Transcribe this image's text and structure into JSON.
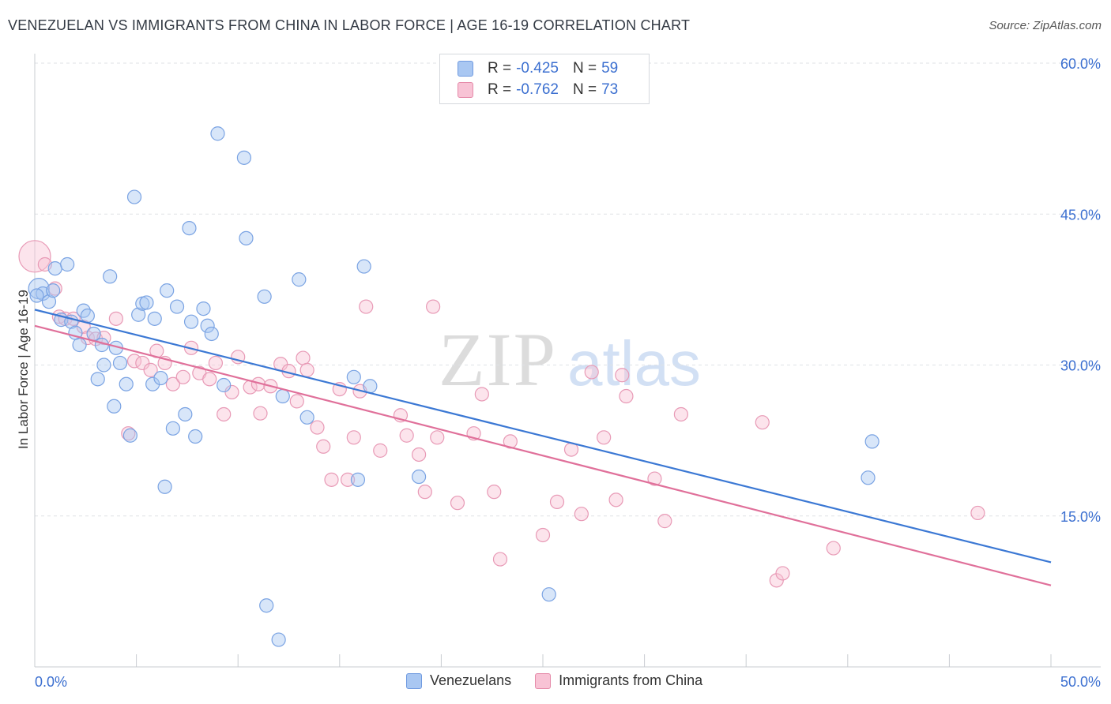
{
  "title": "VENEZUELAN VS IMMIGRANTS FROM CHINA IN LABOR FORCE | AGE 16-19 CORRELATION CHART",
  "source": "Source: ZipAtlas.com",
  "watermark": {
    "zip": "ZIP",
    "atlas": "atlas"
  },
  "legend": {
    "rows": [
      {
        "r_label": "R =",
        "r_value": "-0.425",
        "n_label": "N =",
        "n_value": "59",
        "color": "#a9c7f2",
        "border": "#6f9ae0"
      },
      {
        "r_label": "R =",
        "r_value": "-0.762",
        "n_label": "N =",
        "n_value": "73",
        "color": "#f8c3d5",
        "border": "#e58aa9"
      }
    ],
    "bottom": [
      "Venezuelans",
      "Immigrants from China"
    ]
  },
  "chart_data": {
    "type": "scatter",
    "title": "VENEZUELAN VS IMMIGRANTS FROM CHINA IN LABOR FORCE | AGE 16-19 CORRELATION CHART",
    "xlabel": "",
    "ylabel": "In Labor Force | Age 16-19",
    "xlim": [
      0,
      50
    ],
    "ylim": [
      0,
      60
    ],
    "x_tick_labels": [
      "0.0%",
      "50.0%"
    ],
    "y_ticks": [
      15,
      30,
      45,
      60
    ],
    "y_tick_labels": [
      "15.0%",
      "30.0%",
      "45.0%",
      "60.0%"
    ],
    "grid": true,
    "colors": {
      "venezuelans": "#3b78d4",
      "china": "#e0709a"
    },
    "series": [
      {
        "name": "Venezuelans",
        "regression": {
          "x": [
            0,
            50
          ],
          "y": [
            35.5,
            10.4
          ]
        },
        "points": [
          [
            0.2,
            37.6
          ],
          [
            0.4,
            37.1
          ],
          [
            0.7,
            36.3
          ],
          [
            0.9,
            37.4
          ],
          [
            1.0,
            39.6
          ],
          [
            1.3,
            34.5
          ],
          [
            1.6,
            40.0
          ],
          [
            1.8,
            34.3
          ],
          [
            2.0,
            33.2
          ],
          [
            2.2,
            32.0
          ],
          [
            2.4,
            35.4
          ],
          [
            2.6,
            34.9
          ],
          [
            2.9,
            33.1
          ],
          [
            3.1,
            28.6
          ],
          [
            3.3,
            32.0
          ],
          [
            3.4,
            30.0
          ],
          [
            3.7,
            38.8
          ],
          [
            3.9,
            25.9
          ],
          [
            4.0,
            31.7
          ],
          [
            4.2,
            30.2
          ],
          [
            4.5,
            28.1
          ],
          [
            4.7,
            23.0
          ],
          [
            4.9,
            46.7
          ],
          [
            5.1,
            35.0
          ],
          [
            5.3,
            36.1
          ],
          [
            5.5,
            36.2
          ],
          [
            5.8,
            28.1
          ],
          [
            5.9,
            34.6
          ],
          [
            6.2,
            28.7
          ],
          [
            6.4,
            17.9
          ],
          [
            6.5,
            37.4
          ],
          [
            6.8,
            23.7
          ],
          [
            7.0,
            35.8
          ],
          [
            7.4,
            25.1
          ],
          [
            7.6,
            43.6
          ],
          [
            7.7,
            34.3
          ],
          [
            7.9,
            22.9
          ],
          [
            8.3,
            35.6
          ],
          [
            8.5,
            33.9
          ],
          [
            8.7,
            33.1
          ],
          [
            9.3,
            28.0
          ],
          [
            9.0,
            53.0
          ],
          [
            10.3,
            50.6
          ],
          [
            10.4,
            42.6
          ],
          [
            11.3,
            36.8
          ],
          [
            11.4,
            6.1
          ],
          [
            12.0,
            2.7
          ],
          [
            12.2,
            26.9
          ],
          [
            13.0,
            38.5
          ],
          [
            13.4,
            24.8
          ],
          [
            15.7,
            28.8
          ],
          [
            15.9,
            18.6
          ],
          [
            16.2,
            39.8
          ],
          [
            16.5,
            27.9
          ],
          [
            18.9,
            18.9
          ],
          [
            25.3,
            7.2
          ],
          [
            41.2,
            22.4
          ],
          [
            41.0,
            18.8
          ],
          [
            0.1,
            36.9
          ]
        ]
      },
      {
        "name": "Immigrants from China",
        "regression": {
          "x": [
            0,
            50
          ],
          "y": [
            33.9,
            8.1
          ]
        },
        "points": [
          [
            0.0,
            40.8
          ],
          [
            0.5,
            40.0
          ],
          [
            1.0,
            37.6
          ],
          [
            1.2,
            34.8
          ],
          [
            1.5,
            34.6
          ],
          [
            1.9,
            34.6
          ],
          [
            2.4,
            33.8
          ],
          [
            2.6,
            32.7
          ],
          [
            3.0,
            32.6
          ],
          [
            3.4,
            32.7
          ],
          [
            4.0,
            34.6
          ],
          [
            4.6,
            23.2
          ],
          [
            4.9,
            30.4
          ],
          [
            5.3,
            30.2
          ],
          [
            5.7,
            29.5
          ],
          [
            6.0,
            31.4
          ],
          [
            6.4,
            30.2
          ],
          [
            6.8,
            28.1
          ],
          [
            7.3,
            28.8
          ],
          [
            7.7,
            31.7
          ],
          [
            8.1,
            29.2
          ],
          [
            8.6,
            28.6
          ],
          [
            8.9,
            30.2
          ],
          [
            9.3,
            25.1
          ],
          [
            9.7,
            27.3
          ],
          [
            10.0,
            30.8
          ],
          [
            10.6,
            27.8
          ],
          [
            11.0,
            28.1
          ],
          [
            11.1,
            25.2
          ],
          [
            11.6,
            27.9
          ],
          [
            12.1,
            30.1
          ],
          [
            12.5,
            29.4
          ],
          [
            12.9,
            26.4
          ],
          [
            13.2,
            30.7
          ],
          [
            13.4,
            29.5
          ],
          [
            13.9,
            23.8
          ],
          [
            14.2,
            21.9
          ],
          [
            14.6,
            18.6
          ],
          [
            15.0,
            27.6
          ],
          [
            15.4,
            18.6
          ],
          [
            15.7,
            22.8
          ],
          [
            16.0,
            27.4
          ],
          [
            16.3,
            35.8
          ],
          [
            17.0,
            21.5
          ],
          [
            18.0,
            25.0
          ],
          [
            18.3,
            23.0
          ],
          [
            18.9,
            21.1
          ],
          [
            19.2,
            17.4
          ],
          [
            19.6,
            35.8
          ],
          [
            19.8,
            22.8
          ],
          [
            20.8,
            16.3
          ],
          [
            21.6,
            23.2
          ],
          [
            22.0,
            27.1
          ],
          [
            22.6,
            17.4
          ],
          [
            22.9,
            10.7
          ],
          [
            23.4,
            22.4
          ],
          [
            25.0,
            13.1
          ],
          [
            25.7,
            16.4
          ],
          [
            26.4,
            21.6
          ],
          [
            26.9,
            15.2
          ],
          [
            27.4,
            29.3
          ],
          [
            28.0,
            22.8
          ],
          [
            28.6,
            16.6
          ],
          [
            28.9,
            29.0
          ],
          [
            29.1,
            26.9
          ],
          [
            30.5,
            18.7
          ],
          [
            31.0,
            14.5
          ],
          [
            31.8,
            25.1
          ],
          [
            35.8,
            24.3
          ],
          [
            36.5,
            8.6
          ],
          [
            36.8,
            9.3
          ],
          [
            39.3,
            11.8
          ],
          [
            46.4,
            15.3
          ]
        ]
      }
    ]
  }
}
